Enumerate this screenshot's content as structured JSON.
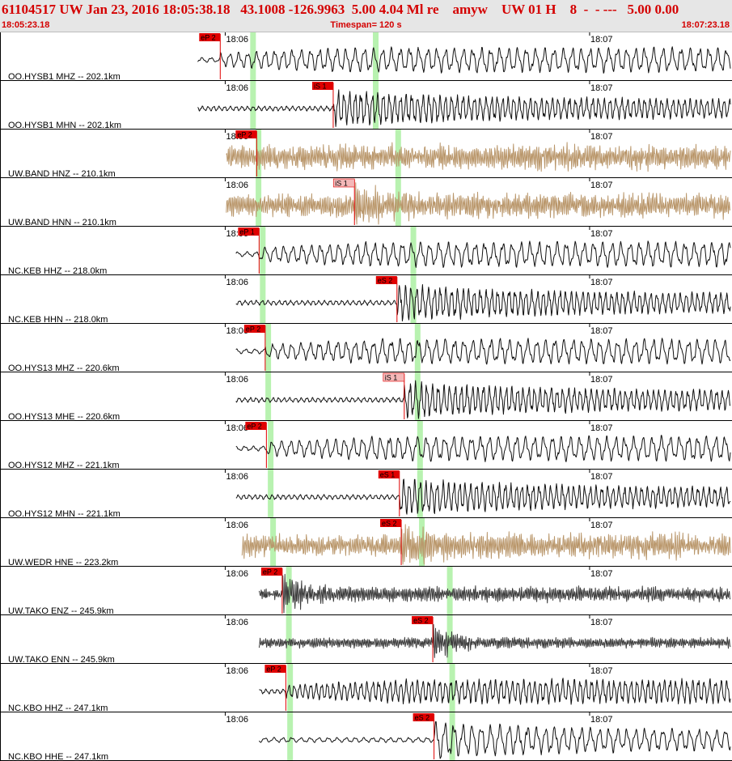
{
  "header": {
    "title": "61104517 UW Jan 23, 2016 18:05:38.18   43.1008 -126.9963  5.00 4.04 Ml re    amyw    UW 01 H    8  -  - ---   5.00 0.00",
    "start_time": "18:05:23.18",
    "timespan": "Timespan= 120 s",
    "end_time": "18:07:23.18"
  },
  "colors": {
    "pick": "#e00000",
    "pick_light": "#f4b8b8",
    "window": "#b8f2b0",
    "trace_dark": "#111111",
    "trace_tan": "#b9966a",
    "trace_gray": "#3a3a3a"
  },
  "chart_data": {
    "type": "line",
    "title": "61104517 UW Jan 23, 2016 18:05:38.18",
    "x_range": [
      "18:05:23.18",
      "18:07:23.18"
    ],
    "x_unit": "s",
    "xlim": [
      0,
      120
    ],
    "tick_labels": [
      "18:06",
      "18:07"
    ],
    "ticks": [
      36.82,
      96.82
    ],
    "channels": [
      {
        "label": "OO.HYSB1 MHZ -- 202.1km",
        "trace": "dark",
        "data_start": 32.3,
        "pick": {
          "label": "eP 2",
          "t": 36.0,
          "style": "red"
        },
        "window": [
          41.4,
          61.6
        ]
      },
      {
        "label": "OO.HYSB1 MHN -- 202.1km",
        "trace": "dark",
        "data_start": 32.3,
        "pick": {
          "label": "iS 1",
          "t": 54.6,
          "style": "red"
        },
        "window": [
          41.4,
          61.6
        ]
      },
      {
        "label": "UW.BAND HNZ -- 210.1km",
        "trace": "tan",
        "data_start": 37.0,
        "pick": {
          "label": "eP 2",
          "t": 42.0,
          "style": "red"
        },
        "window": [
          42.3,
          65.3
        ]
      },
      {
        "label": "UW.BAND HNN -- 210.1km",
        "trace": "tan",
        "data_start": 37.0,
        "pick": {
          "label": "iS 1",
          "t": 58.1,
          "style": "light"
        },
        "window": [
          42.3,
          65.3
        ]
      },
      {
        "label": "NC.KEB HHZ -- 218.0km",
        "trace": "dark",
        "data_start": 38.6,
        "pick": {
          "label": "eP 1",
          "t": 42.4,
          "style": "red"
        },
        "window": [
          43.0,
          67.8
        ]
      },
      {
        "label": "NC.KEB HHN -- 218.0km",
        "trace": "dark",
        "data_start": 38.6,
        "pick": {
          "label": "eS 2",
          "t": 65.1,
          "style": "red"
        },
        "window": [
          43.0,
          67.8
        ]
      },
      {
        "label": "OO.HYS13 MHZ -- 220.6km",
        "trace": "dark",
        "data_start": 38.6,
        "pick": {
          "label": "eP 2",
          "t": 43.4,
          "style": "red"
        },
        "window": [
          43.9,
          68.5
        ]
      },
      {
        "label": "OO.HYS13 MHE -- 220.6km",
        "trace": "dark",
        "data_start": 38.6,
        "pick": {
          "label": "iS 1",
          "t": 66.3,
          "style": "light"
        },
        "window": [
          43.9,
          68.5
        ]
      },
      {
        "label": "OO.HYS12 MHZ -- 221.1km",
        "trace": "dark",
        "data_start": 38.6,
        "pick": {
          "label": "eP 2",
          "t": 43.6,
          "style": "red"
        },
        "window": [
          44.3,
          68.9
        ]
      },
      {
        "label": "OO.HYS12 MHN -- 221.1km",
        "trace": "dark",
        "data_start": 38.6,
        "pick": {
          "label": "eS 1",
          "t": 65.5,
          "style": "red"
        },
        "window": [
          44.3,
          68.9
        ]
      },
      {
        "label": "UW.WEDR HNE -- 223.2km",
        "trace": "tan",
        "data_start": 39.6,
        "pick": {
          "label": "eS 2",
          "t": 65.8,
          "style": "red"
        },
        "window": [
          44.7,
          69.2
        ]
      },
      {
        "label": "UW.TAKO ENZ -- 245.9km",
        "trace": "gray",
        "data_start": 42.4,
        "pick": {
          "label": "eP 2",
          "t": 46.2,
          "style": "red"
        },
        "window": [
          47.3,
          73.8
        ]
      },
      {
        "label": "UW.TAKO ENN -- 245.9km",
        "trace": "gray",
        "data_start": 42.4,
        "pick": {
          "label": "eS 2",
          "t": 71.0,
          "style": "red"
        },
        "window": [
          47.3,
          73.8
        ]
      },
      {
        "label": "NC.KBO HHZ -- 247.1km",
        "trace": "dark",
        "data_start": 42.4,
        "pick": {
          "label": "eP 2",
          "t": 46.8,
          "style": "red"
        },
        "window": [
          47.5,
          74.2
        ]
      },
      {
        "label": "NC.KBO HHE -- 247.1km",
        "trace": "dark",
        "data_start": 42.4,
        "pick": {
          "label": "eS 2",
          "t": 71.2,
          "style": "red"
        },
        "window": [
          47.5,
          74.2
        ]
      }
    ]
  }
}
